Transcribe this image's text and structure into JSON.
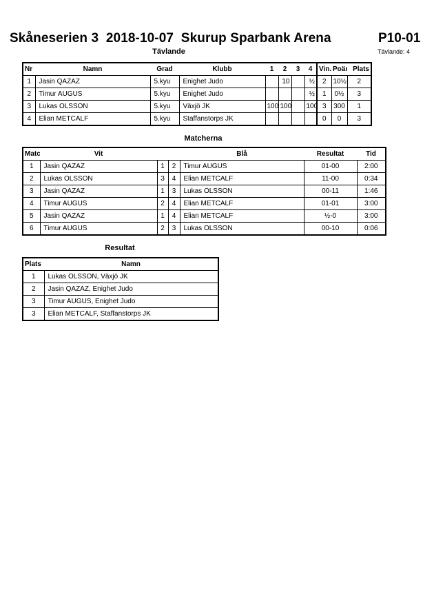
{
  "header": {
    "title": "Skåneserien 3  2018-10-07  Skurup Sparbank Arena",
    "code": "P10-01",
    "competitors_count": "Tävlande: 4"
  },
  "competitors": {
    "heading": "Tävlande",
    "columns": [
      "Nr",
      "Namn",
      "Grad",
      "Klubb",
      "1",
      "2",
      "3",
      "4",
      "Vin.",
      "Poäng",
      "Plats"
    ],
    "rows": [
      [
        "1",
        "Jasin QAZAZ",
        "5.kyu",
        "Enighet Judo",
        "",
        "10",
        "",
        "½",
        "2",
        "10½",
        "2"
      ],
      [
        "2",
        "Timur AUGUS",
        "5.kyu",
        "Enighet Judo",
        "",
        "",
        "",
        "½",
        "1",
        "0½",
        "3"
      ],
      [
        "3",
        "Lukas OLSSON",
        "5.kyu",
        "Växjö JK",
        "100",
        "100",
        "",
        "100",
        "3",
        "300",
        "1"
      ],
      [
        "4",
        "Elian METCALF",
        "5.kyu",
        "Staffanstorps JK",
        "",
        "",
        "",
        "",
        "0",
        "0",
        "3"
      ]
    ]
  },
  "matches": {
    "heading": "Matcherna",
    "columns": [
      "Match",
      "Vit",
      "",
      "",
      "Blå",
      "Resultat",
      "Tid"
    ],
    "rows": [
      [
        "1",
        "Jasin QAZAZ",
        "1",
        "2",
        "Timur AUGUS",
        "01-00",
        "2:00"
      ],
      [
        "2",
        "Lukas OLSSON",
        "3",
        "4",
        "Elian METCALF",
        "11-00",
        "0:34"
      ],
      [
        "3",
        "Jasin QAZAZ",
        "1",
        "3",
        "Lukas OLSSON",
        "00-11",
        "1:46"
      ],
      [
        "4",
        "Timur AUGUS",
        "2",
        "4",
        "Elian METCALF",
        "01-01",
        "3:00"
      ],
      [
        "5",
        "Jasin QAZAZ",
        "1",
        "4",
        "Elian METCALF",
        "½-0",
        "3:00"
      ],
      [
        "6",
        "Timur AUGUS",
        "2",
        "3",
        "Lukas OLSSON",
        "00-10",
        "0:06"
      ]
    ]
  },
  "results": {
    "heading": "Resultat",
    "columns": [
      "Plats",
      "Namn"
    ],
    "rows": [
      [
        "1",
        "Lukas OLSSON, Växjö JK"
      ],
      [
        "2",
        "Jasin QAZAZ, Enighet Judo"
      ],
      [
        "3",
        "Timur AUGUS, Enighet Judo"
      ],
      [
        "3",
        "Elian METCALF, Staffanstorps JK"
      ]
    ]
  }
}
